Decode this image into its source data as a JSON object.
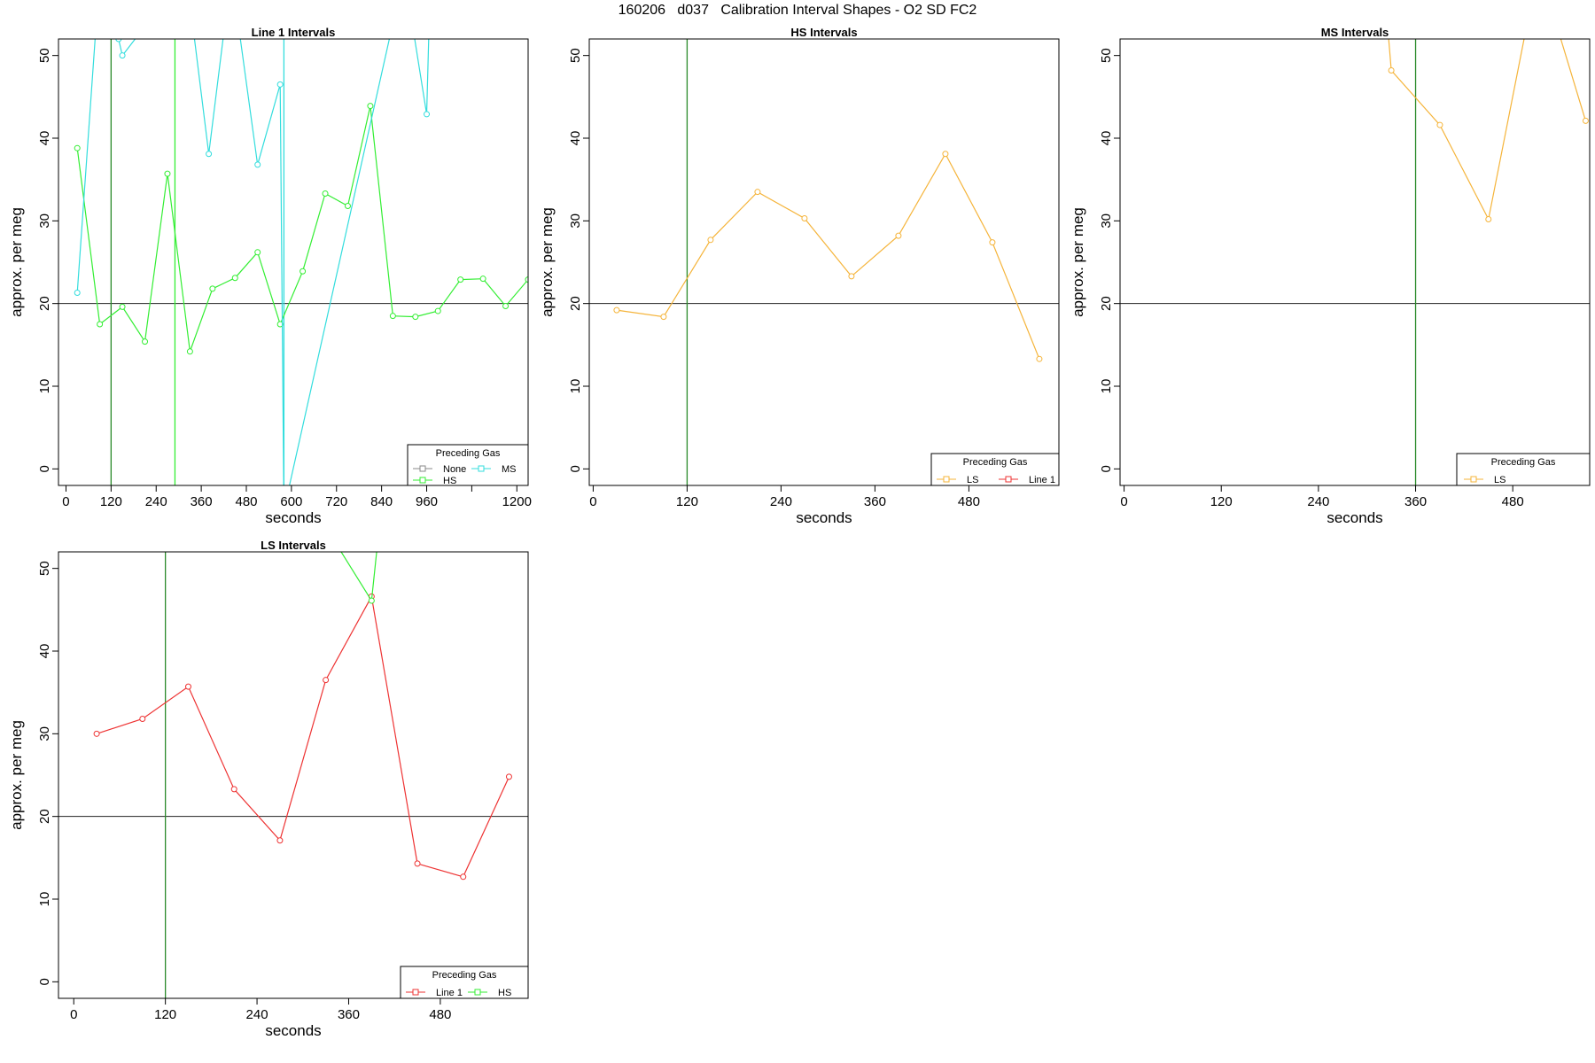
{
  "page_title": "160206   d037   Calibration Interval Shapes - O2 SD FC2",
  "colors": {
    "none": "#888888",
    "hs": "#33ee33",
    "ms": "#33dddd",
    "ls": "#f5b43a",
    "line1": "#ee3333",
    "hline": "#222222",
    "vline_green": "#2a8a2a",
    "vline_bright": "#33ee33",
    "vline_cyan": "#33dddd"
  },
  "chart_data": [
    {
      "type": "line",
      "title": "Line 1 Intervals",
      "xlabel": "seconds",
      "ylabel": "approx. per meg",
      "xlim": [
        -20,
        1230
      ],
      "ylim": [
        -2,
        52
      ],
      "xticks": [
        0,
        120,
        240,
        360,
        480,
        600,
        720,
        840,
        960,
        1080,
        1200
      ],
      "xtick_labels": [
        "0",
        "120",
        "240",
        "360",
        "480",
        "600",
        "720",
        "840",
        "960",
        "",
        "1200"
      ],
      "yticks": [
        0,
        10,
        20,
        30,
        40,
        50
      ],
      "hline": 20,
      "vlines": [
        {
          "x": 120,
          "color_key": "vline_green"
        },
        {
          "x": 290,
          "color_key": "vline_bright"
        },
        {
          "x": 580,
          "color_key": "vline_cyan"
        }
      ],
      "legend": {
        "title": "Preceding Gas",
        "position": "bottom-right",
        "entries": [
          {
            "label": "None",
            "color_key": "none"
          },
          {
            "label": "MS",
            "color_key": "ms"
          },
          {
            "label": "HS",
            "color_key": "hs"
          }
        ]
      },
      "series": [
        {
          "color_key": "hs",
          "x": [
            30,
            90,
            150,
            210,
            270,
            330,
            390,
            450,
            510,
            570,
            630,
            690,
            750,
            810,
            870,
            930,
            990,
            1050,
            1110,
            1170,
            1230
          ],
          "y": [
            38.8,
            17.5,
            19.6,
            15.4,
            35.7,
            14.2,
            21.8,
            23.1,
            26.2,
            17.5,
            23.9,
            33.3,
            31.8,
            43.9,
            18.5,
            18.4,
            19.1,
            22.9,
            23.0,
            19.7,
            22.9
          ]
        },
        {
          "color_key": "ms",
          "x": [
            30,
            90,
            140,
            150,
            320,
            380,
            440,
            510,
            570,
            580,
            900,
            960,
            970
          ],
          "y": [
            21.3,
            60,
            52,
            50,
            60,
            38.1,
            60,
            36.8,
            46.5,
            -5,
            60,
            42.9,
            60
          ]
        }
      ]
    },
    {
      "type": "line",
      "title": "HS Intervals",
      "xlabel": "seconds",
      "ylabel": "approx. per meg",
      "xlim": [
        -5,
        595
      ],
      "ylim": [
        -2,
        52
      ],
      "xticks": [
        0,
        120,
        240,
        360,
        480
      ],
      "xtick_labels": [
        "0",
        "120",
        "240",
        "360",
        "480"
      ],
      "yticks": [
        0,
        10,
        20,
        30,
        40,
        50
      ],
      "hline": 20,
      "vlines": [
        {
          "x": 120,
          "color_key": "vline_green"
        }
      ],
      "legend": {
        "title": "Preceding Gas",
        "position": "bottom-right",
        "entries": [
          {
            "label": "LS",
            "color_key": "ls"
          },
          {
            "label": "Line 1",
            "color_key": "line1"
          }
        ]
      },
      "series": [
        {
          "color_key": "ls",
          "x": [
            30,
            90,
            150,
            210,
            270,
            330,
            390,
            450,
            510,
            570
          ],
          "y": [
            19.2,
            18.4,
            27.7,
            33.5,
            30.3,
            23.3,
            28.2,
            38.1,
            27.4,
            13.3
          ]
        }
      ]
    },
    {
      "type": "line",
      "title": "MS Intervals",
      "xlabel": "seconds",
      "ylabel": "approx. per meg",
      "xlim": [
        -5,
        575
      ],
      "ylim": [
        -2,
        52
      ],
      "xticks": [
        0,
        120,
        240,
        360,
        480
      ],
      "xtick_labels": [
        "0",
        "120",
        "240",
        "360",
        "480"
      ],
      "yticks": [
        0,
        10,
        20,
        30,
        40,
        50
      ],
      "hline": 20,
      "vlines": [
        {
          "x": 360,
          "color_key": "vline_green"
        }
      ],
      "legend": {
        "title": "Preceding Gas",
        "position": "bottom-right",
        "entries": [
          {
            "label": "LS",
            "color_key": "ls"
          }
        ]
      },
      "series": [
        {
          "color_key": "ls",
          "x": [
            320,
            330,
            390,
            450,
            500,
            530,
            570
          ],
          "y": [
            60,
            48.2,
            41.6,
            30.2,
            55,
            55,
            42.1
          ]
        }
      ]
    },
    {
      "type": "line",
      "title": "LS Intervals",
      "xlabel": "seconds",
      "ylabel": "approx. per meg",
      "xlim": [
        -20,
        595
      ],
      "ylim": [
        -2,
        52
      ],
      "xticks": [
        0,
        120,
        240,
        360,
        480
      ],
      "xtick_labels": [
        "0",
        "120",
        "240",
        "360",
        "480"
      ],
      "yticks": [
        0,
        10,
        20,
        30,
        40,
        50
      ],
      "hline": 20,
      "vlines": [
        {
          "x": 120,
          "color_key": "vline_green"
        }
      ],
      "legend": {
        "title": "Preceding Gas",
        "position": "bottom-right",
        "entries": [
          {
            "label": "Line 1",
            "color_key": "line1"
          },
          {
            "label": "HS",
            "color_key": "hs"
          }
        ]
      },
      "series": [
        {
          "color_key": "line1",
          "x": [
            30,
            90,
            150,
            210,
            270,
            330,
            390,
            450,
            510,
            570
          ],
          "y": [
            30.0,
            31.8,
            35.7,
            23.3,
            17.1,
            36.5,
            46.6,
            14.3,
            12.7,
            24.8
          ]
        },
        {
          "color_key": "hs",
          "x": [
            330,
            390,
            400
          ],
          "y": [
            55,
            46.1,
            55
          ]
        }
      ]
    }
  ]
}
